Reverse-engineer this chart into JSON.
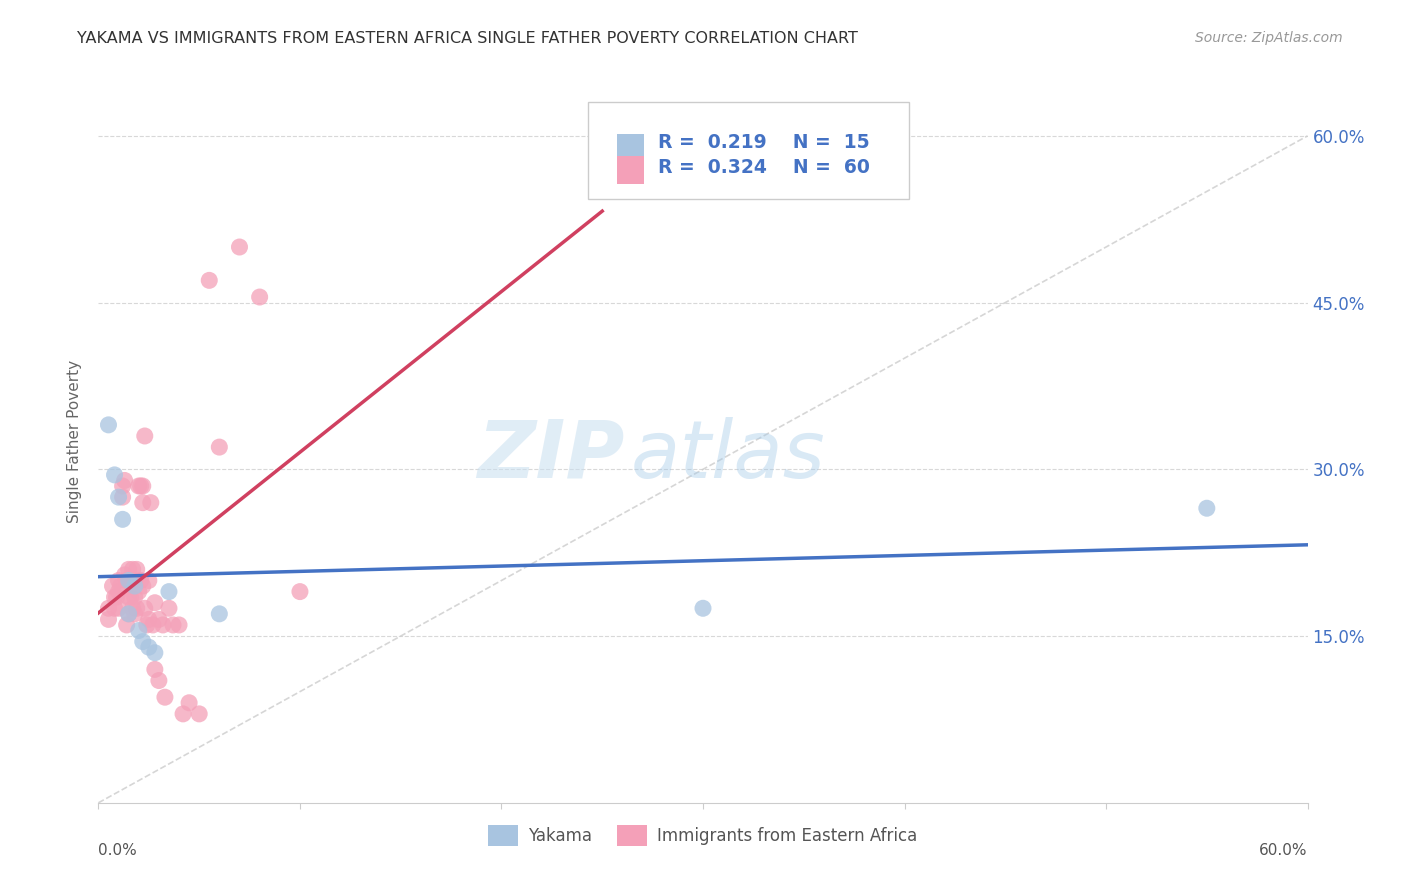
{
  "title": "YAKAMA VS IMMIGRANTS FROM EASTERN AFRICA SINGLE FATHER POVERTY CORRELATION CHART",
  "source": "Source: ZipAtlas.com",
  "ylabel": "Single Father Poverty",
  "ytick_values": [
    0.15,
    0.3,
    0.45,
    0.6
  ],
  "xlim": [
    0.0,
    0.6
  ],
  "ylim": [
    0.0,
    0.65
  ],
  "yakama_R": 0.219,
  "yakama_N": 15,
  "eastern_africa_R": 0.324,
  "eastern_africa_N": 60,
  "yakama_color": "#a8c4e0",
  "eastern_africa_color": "#f4a0b8",
  "yakama_line_color": "#4472c4",
  "eastern_africa_line_color": "#d04060",
  "diagonal_color": "#cccccc",
  "background_color": "#ffffff",
  "yakama_x": [
    0.005,
    0.008,
    0.01,
    0.012,
    0.015,
    0.015,
    0.018,
    0.02,
    0.022,
    0.025,
    0.028,
    0.035,
    0.06,
    0.3,
    0.55
  ],
  "yakama_y": [
    0.34,
    0.295,
    0.275,
    0.255,
    0.2,
    0.17,
    0.195,
    0.155,
    0.145,
    0.14,
    0.135,
    0.19,
    0.17,
    0.175,
    0.265
  ],
  "eastern_africa_x": [
    0.005,
    0.005,
    0.007,
    0.008,
    0.008,
    0.009,
    0.01,
    0.01,
    0.01,
    0.011,
    0.012,
    0.012,
    0.013,
    0.013,
    0.014,
    0.014,
    0.015,
    0.015,
    0.015,
    0.015,
    0.016,
    0.016,
    0.017,
    0.017,
    0.018,
    0.018,
    0.018,
    0.019,
    0.019,
    0.02,
    0.02,
    0.021,
    0.021,
    0.022,
    0.022,
    0.022,
    0.023,
    0.023,
    0.024,
    0.025,
    0.025,
    0.026,
    0.027,
    0.028,
    0.028,
    0.03,
    0.03,
    0.032,
    0.033,
    0.035,
    0.037,
    0.04,
    0.042,
    0.045,
    0.05,
    0.055,
    0.06,
    0.07,
    0.08,
    0.1
  ],
  "eastern_africa_y": [
    0.175,
    0.165,
    0.195,
    0.185,
    0.175,
    0.185,
    0.2,
    0.19,
    0.175,
    0.195,
    0.285,
    0.275,
    0.29,
    0.205,
    0.2,
    0.16,
    0.21,
    0.2,
    0.185,
    0.17,
    0.2,
    0.185,
    0.21,
    0.175,
    0.2,
    0.185,
    0.17,
    0.21,
    0.175,
    0.285,
    0.19,
    0.285,
    0.2,
    0.285,
    0.27,
    0.195,
    0.33,
    0.175,
    0.16,
    0.2,
    0.165,
    0.27,
    0.16,
    0.18,
    0.12,
    0.165,
    0.11,
    0.16,
    0.095,
    0.175,
    0.16,
    0.16,
    0.08,
    0.09,
    0.08,
    0.47,
    0.32,
    0.5,
    0.455,
    0.19
  ],
  "watermark_zip": "ZIP",
  "watermark_atlas": "atlas"
}
